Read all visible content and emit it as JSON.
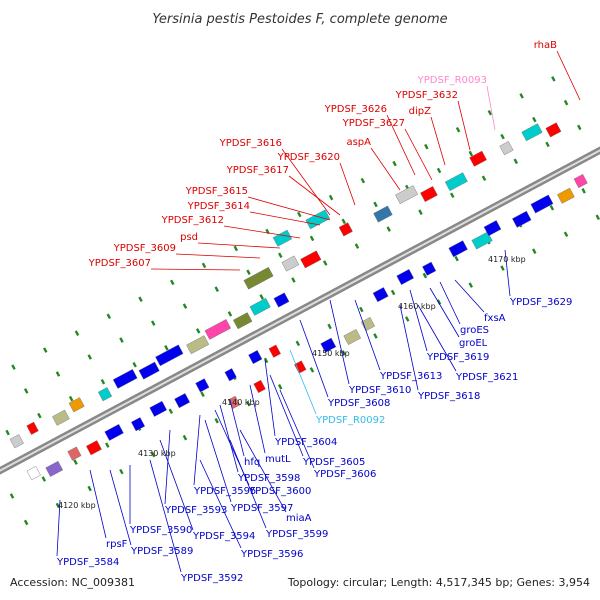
{
  "title": "Yersinia pestis Pestoides F, complete genome",
  "footer": {
    "accession": "Accession: NC_009381",
    "topology": "Topology: circular; Length: 4,517,345 bp; Genes: 3,954"
  },
  "colors": {
    "upper_label": "#dd0000",
    "lower_label": "#0000cc",
    "rna_lower": "#33bbee",
    "rna_upper": "#ff88cc",
    "backbone": "#888888",
    "tick_mark": "#228822"
  },
  "ticks": [
    "4120 kbp",
    "4130 kbp",
    "4140 kbp",
    "4150 kbp",
    "4160 kbp",
    "4170 kbp"
  ],
  "upper_labels": [
    {
      "text": "rhaB",
      "color": "upper"
    },
    {
      "text": "YPDSF_R0093",
      "color": "rna"
    },
    {
      "text": "YPDSF_3632",
      "color": "upper"
    },
    {
      "text": "dipZ",
      "color": "upper"
    },
    {
      "text": "YPDSF_3626",
      "color": "upper"
    },
    {
      "text": "YPDSF_3627",
      "color": "upper"
    },
    {
      "text": "aspA",
      "color": "upper"
    },
    {
      "text": "YPDSF_3616",
      "color": "upper"
    },
    {
      "text": "YPDSF_3620",
      "color": "upper"
    },
    {
      "text": "YPDSF_3617",
      "color": "upper"
    },
    {
      "text": "YPDSF_3615",
      "color": "upper"
    },
    {
      "text": "YPDSF_3614",
      "color": "upper"
    },
    {
      "text": "YPDSF_3612",
      "color": "upper"
    },
    {
      "text": "psd",
      "color": "upper"
    },
    {
      "text": "YPDSF_3609",
      "color": "upper"
    },
    {
      "text": "YPDSF_3607",
      "color": "upper"
    }
  ],
  "lower_labels": [
    {
      "text": "YPDSF_3629",
      "color": "lower"
    },
    {
      "text": "fxsA",
      "color": "lower"
    },
    {
      "text": "groES",
      "color": "lower"
    },
    {
      "text": "groEL",
      "color": "lower"
    },
    {
      "text": "YPDSF_3619",
      "color": "lower"
    },
    {
      "text": "YPDSF_3621",
      "color": "lower"
    },
    {
      "text": "YPDSF_3613",
      "color": "lower"
    },
    {
      "text": "YPDSF_3618",
      "color": "lower"
    },
    {
      "text": "YPDSF_3610",
      "color": "lower"
    },
    {
      "text": "YPDSF_3608",
      "color": "lower"
    },
    {
      "text": "YPDSF_R0092",
      "color": "rna"
    },
    {
      "text": "YPDSF_3604",
      "color": "lower"
    },
    {
      "text": "YPDSF_3605",
      "color": "lower"
    },
    {
      "text": "mutL",
      "color": "lower"
    },
    {
      "text": "YPDSF_3606",
      "color": "lower"
    },
    {
      "text": "hfq",
      "color": "lower"
    },
    {
      "text": "YPDSF_3598",
      "color": "lower"
    },
    {
      "text": "YPDSF_3600",
      "color": "lower"
    },
    {
      "text": "YPDSF_3595",
      "color": "lower"
    },
    {
      "text": "YPDSF_3597",
      "color": "lower"
    },
    {
      "text": "miaA",
      "color": "lower"
    },
    {
      "text": "YPDSF_3593",
      "color": "lower"
    },
    {
      "text": "YPDSF_3599",
      "color": "lower"
    },
    {
      "text": "YPDSF_3594",
      "color": "lower"
    },
    {
      "text": "YPDSF_3590",
      "color": "lower"
    },
    {
      "text": "YPDSF_3596",
      "color": "lower"
    },
    {
      "text": "rpsF",
      "color": "lower"
    },
    {
      "text": "YPDSF_3589",
      "color": "lower"
    },
    {
      "text": "YPDSF_3584",
      "color": "lower"
    },
    {
      "text": "YPDSF_3592",
      "color": "lower"
    }
  ]
}
